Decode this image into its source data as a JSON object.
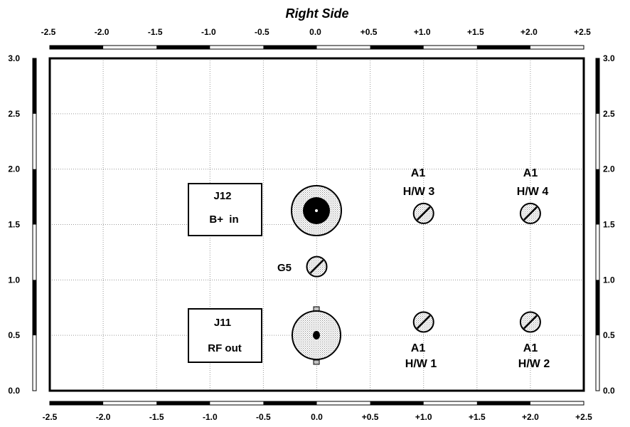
{
  "title": "Right Side",
  "x_axis": {
    "top_ticks": [
      "-2.5",
      "-2.0",
      "-1.5",
      "-1.0",
      "-0.5",
      "0.0",
      "+0.5",
      "+1.0",
      "+1.5",
      "+2.0",
      "+2.5"
    ],
    "bottom_ticks": [
      "-2.5",
      "-2.0",
      "-1.5",
      "-1.0",
      "-0.5",
      "0.0",
      "+0.5",
      "+1.0",
      "+1.5",
      "+2.0",
      "+2.5"
    ],
    "range": [
      -2.5,
      2.5
    ]
  },
  "y_axis": {
    "left_ticks": [
      "0.0",
      "0.5",
      "1.0",
      "1.5",
      "2.0",
      "2.5",
      "3.0"
    ],
    "right_ticks": [
      "0.0",
      "0.5",
      "1.0",
      "1.5",
      "2.0",
      "2.5",
      "3.0"
    ],
    "range": [
      0,
      3
    ]
  },
  "grid": true,
  "labels": {
    "j12_id": "J12",
    "j12_desc": "B+  in",
    "j11_id": "J11",
    "j11_desc": "RF out",
    "g5": "G5",
    "hw1_a": "A1",
    "hw1_b": "H/W 1",
    "hw2_a": "A1",
    "hw2_b": "H/W 2",
    "hw3_a": "A1",
    "hw3_b": "H/W 3",
    "hw4_a": "A1",
    "hw4_b": "H/W 4"
  }
}
